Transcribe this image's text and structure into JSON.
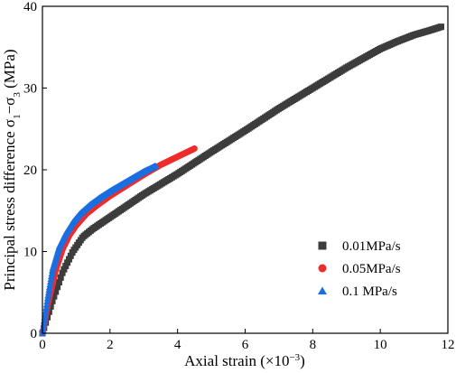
{
  "chart_data": {
    "type": "scatter",
    "xlabel_main": "Axial strain (×10",
    "xlabel_sup": "−3",
    "xlabel_end": ")",
    "ylabel_main": "Principal stress difference σ",
    "ylabel_sub1": "1",
    "ylabel_mid": "−σ",
    "ylabel_sub3": "3",
    "ylabel_end": " (MPa)",
    "xlim": [
      0,
      12
    ],
    "ylim": [
      0,
      40
    ],
    "x_ticks": [
      "0",
      "2",
      "4",
      "6",
      "8",
      "10",
      "12"
    ],
    "y_ticks": [
      "0",
      "10",
      "20",
      "30",
      "40"
    ],
    "legend_position": "bottom-right",
    "series": [
      {
        "name": "0.01MPa/s",
        "marker": "square",
        "color": "#3c3c3c",
        "x": [
          0,
          0.3,
          0.6,
          0.9,
          1.2,
          1.5,
          2.0,
          2.5,
          3.0,
          4.0,
          5.0,
          6.0,
          7.0,
          8.0,
          9.0,
          10.0,
          10.5,
          11.0,
          11.5,
          11.8
        ],
        "y": [
          0,
          4.0,
          7.5,
          10.0,
          11.8,
          12.8,
          14.2,
          15.6,
          17.0,
          19.5,
          22.2,
          24.8,
          27.5,
          30.0,
          32.5,
          34.8,
          35.7,
          36.5,
          37.1,
          37.5
        ]
      },
      {
        "name": "0.05MPa/s",
        "marker": "circle",
        "color": "#ee2c2c",
        "x": [
          0,
          0.2,
          0.4,
          0.6,
          0.8,
          1.0,
          1.3,
          1.6,
          2.0,
          2.5,
          3.0,
          3.5,
          4.0,
          4.5
        ],
        "y": [
          0,
          4.2,
          7.8,
          10.3,
          12.0,
          13.2,
          14.6,
          15.6,
          16.8,
          18.1,
          19.4,
          20.6,
          21.6,
          22.6
        ]
      },
      {
        "name": "0.1 MPa/s",
        "marker": "triangle",
        "color": "#1a6fe0",
        "x": [
          0,
          0.15,
          0.3,
          0.5,
          0.7,
          0.9,
          1.1,
          1.4,
          1.7,
          2.0,
          2.5,
          3.0,
          3.35
        ],
        "y": [
          0,
          4.2,
          7.8,
          10.6,
          12.3,
          13.6,
          14.6,
          15.7,
          16.6,
          17.4,
          18.6,
          19.8,
          20.5
        ]
      }
    ]
  }
}
